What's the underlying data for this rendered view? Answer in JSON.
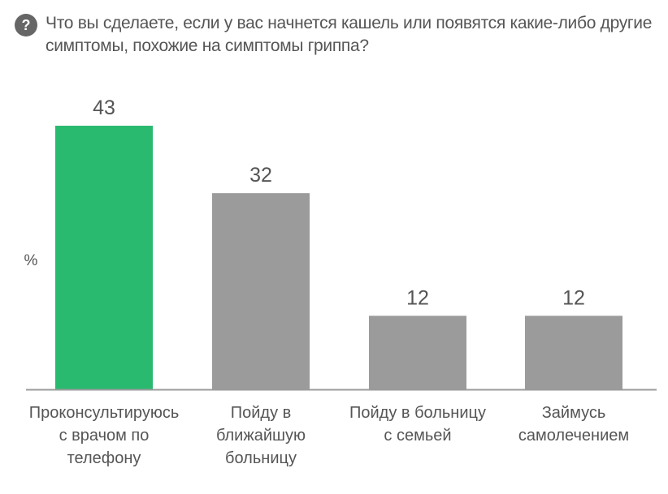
{
  "header": {
    "icon": "question-icon",
    "icon_glyph": "?",
    "title": "Что вы сделаете, если у вас начнется кашель или появятся какие-либо другие симптомы, похожие на симптомы гриппа?"
  },
  "chart_data": {
    "type": "bar",
    "title": "Что вы сделаете, если у вас начнется кашель или появятся какие-либо другие симптомы, похожие на симптомы гриппа?",
    "ylabel": "%",
    "xlabel": "",
    "ylim": [
      0,
      43
    ],
    "grid": false,
    "categories": [
      [
        "Проконсультируюсь",
        "с врачом по",
        "телефону"
      ],
      [
        "Пойду в",
        "ближайшую",
        "больницу"
      ],
      [
        "Пойду в больницу",
        "с семьей"
      ],
      [
        "Займусь",
        "самолечением"
      ]
    ],
    "values": [
      43,
      32,
      12,
      12
    ],
    "colors": [
      "#2aba6f",
      "#9b9b9b",
      "#9b9b9b",
      "#9b9b9b"
    ],
    "axis_color": "#9b9b9b"
  }
}
